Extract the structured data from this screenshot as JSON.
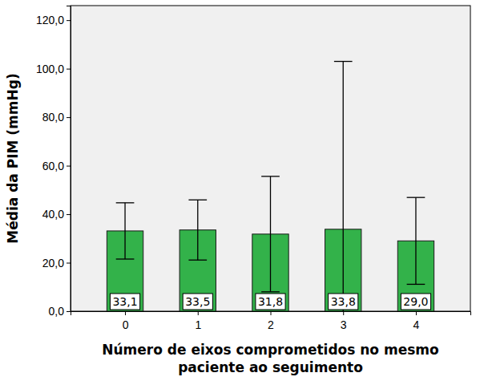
{
  "chart_data": {
    "type": "bar",
    "y_label": "Média da PIM (mmHg)",
    "x_label": [
      "Número de eixos comprometidos no mesmo",
      "paciente ao seguimento"
    ],
    "categories": [
      0,
      1,
      2,
      3,
      4
    ],
    "values": [
      33.1,
      33.5,
      31.8,
      33.8,
      29.0
    ],
    "value_labels": [
      "33,1",
      "33,5",
      "31,8",
      "33,8",
      "29,0"
    ],
    "error": [
      11.6,
      12.4,
      23.8,
      69.2,
      17.9
    ],
    "data_labels": true,
    "color": "#33b24a",
    "grid": false,
    "ylim": [
      0,
      126
    ],
    "yticks": [
      {
        "value": 0,
        "label": "0,0"
      },
      {
        "value": 20,
        "label": "20,0"
      },
      {
        "value": 40,
        "label": "40,0"
      },
      {
        "value": 60,
        "label": "60,0"
      },
      {
        "value": 80,
        "label": "80,0"
      },
      {
        "value": 100,
        "label": "100,0"
      },
      {
        "value": 120,
        "label": "120,0"
      }
    ]
  }
}
